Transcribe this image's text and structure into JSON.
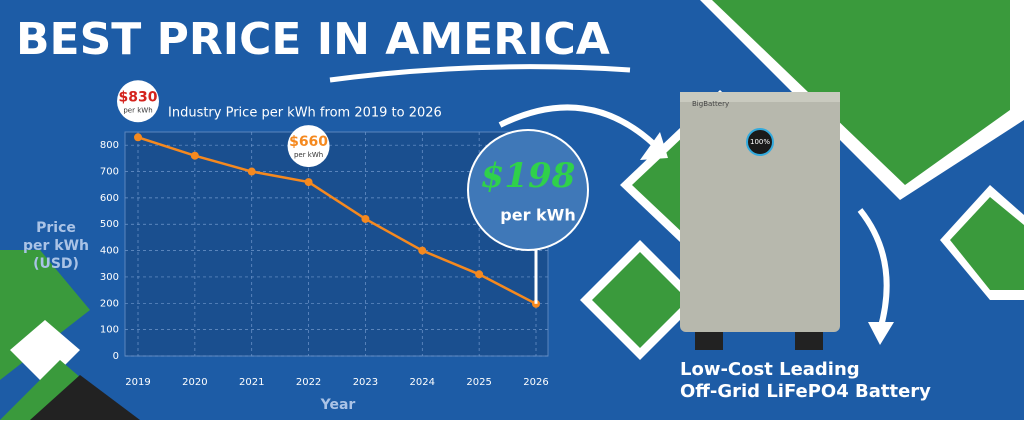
{
  "headline": "BEST PRICE IN AMERICA",
  "product": {
    "brand": "BigBattery",
    "display": "100%",
    "caption": [
      "Low-Cost Leading",
      "Off-Grid LiFePO4 Battery"
    ]
  },
  "chart_data": {
    "type": "line",
    "title": "Industry Price per kWh from 2019 to 2026",
    "y_label": [
      "Price",
      "per kWh",
      "(USD)"
    ],
    "x_label": "Year",
    "categories": [
      "2019",
      "2020",
      "2021",
      "2022",
      "2023",
      "2024",
      "2025",
      "2026"
    ],
    "values": [
      830,
      760,
      700,
      660,
      520,
      400,
      310,
      198
    ],
    "value_labels": [
      "$830",
      null,
      null,
      "$660",
      null,
      null,
      null,
      "$198"
    ],
    "value_label_unit": "per kWh",
    "color": "#f5891f",
    "ylim": [
      0,
      850
    ],
    "yticks": [
      0,
      100,
      200,
      300,
      400,
      500,
      600,
      700,
      800
    ],
    "grid": true
  }
}
